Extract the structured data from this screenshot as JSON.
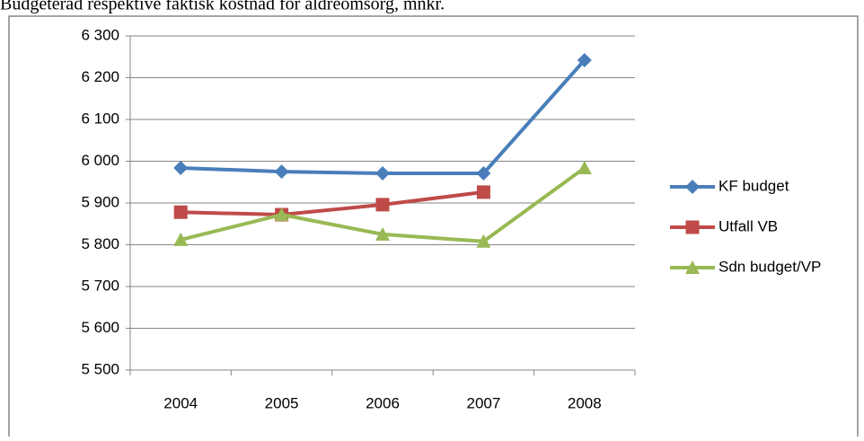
{
  "chart_data": {
    "type": "line",
    "title": "Budgeterad respektive faktisk kostnad för äldreomsorg, mnkr.",
    "categories": [
      "2004",
      "2005",
      "2006",
      "2007",
      "2008"
    ],
    "series": [
      {
        "name": "KF budget",
        "color": "#4a7ebb",
        "marker": "diamond",
        "values": [
          5984,
          5975,
          5971,
          5971,
          6242
        ]
      },
      {
        "name": "Utfall VB",
        "color": "#be4b48",
        "marker": "square",
        "values": [
          5878,
          5872,
          5896,
          5926,
          null
        ]
      },
      {
        "name": "Sdn budget/VP",
        "color": "#98b954",
        "marker": "triangle",
        "values": [
          5812,
          5872,
          5825,
          5808,
          5984
        ]
      }
    ],
    "ylim": [
      5500,
      6300
    ],
    "yticks": [
      {
        "value": 5500,
        "label": "5 500"
      },
      {
        "value": 5600,
        "label": "5 600"
      },
      {
        "value": 5700,
        "label": "5 700"
      },
      {
        "value": 5800,
        "label": "5 800"
      },
      {
        "value": 5900,
        "label": "5 900"
      },
      {
        "value": 6000,
        "label": "6 000"
      },
      {
        "value": 6100,
        "label": "6 100"
      },
      {
        "value": 6200,
        "label": "6 200"
      },
      {
        "value": 6300,
        "label": "6 300"
      }
    ],
    "grid": true,
    "legend": "right"
  }
}
